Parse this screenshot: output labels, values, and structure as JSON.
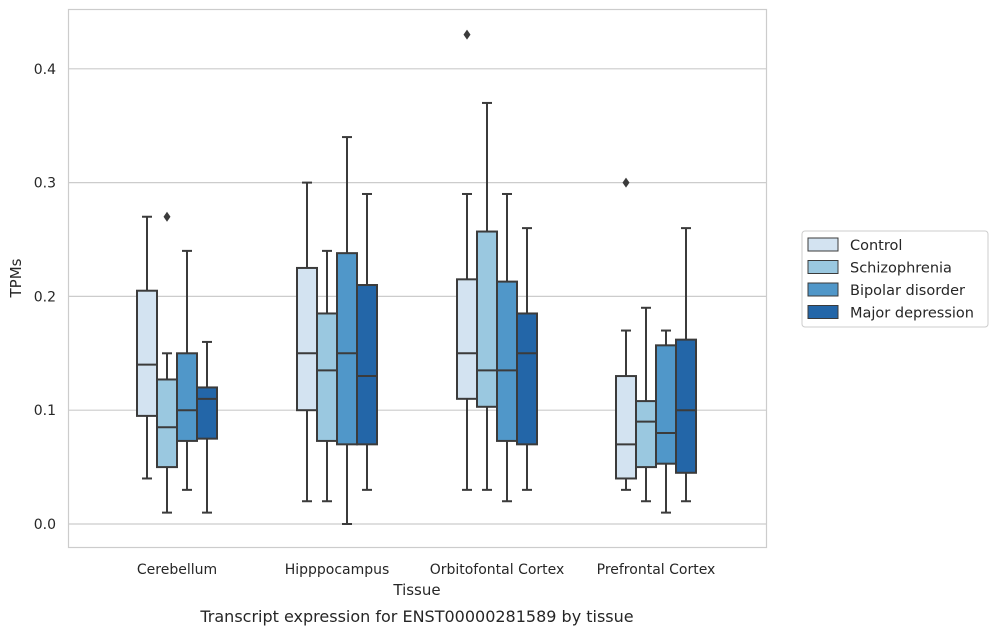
{
  "chart_data": {
    "type": "boxplot",
    "title": "",
    "xlabel": "Tissue",
    "ylabel": "TPMs",
    "caption": "Transcript expression for ENST00000281589 by tissue",
    "ylim": [
      -0.021,
      0.452
    ],
    "yticks": [
      0.0,
      0.1,
      0.2,
      0.3,
      0.4
    ],
    "ytick_labels": [
      "0.0",
      "0.1",
      "0.2",
      "0.3",
      "0.4"
    ],
    "grid": "horizontal",
    "legend_position": "right",
    "categories": [
      "Cerebellum",
      "Hipppocampus",
      "Orbitofontal Cortex",
      "Prefrontal Cortex"
    ],
    "series": [
      {
        "name": "Control",
        "color": "#d3e3f1",
        "boxes": [
          {
            "whislo": 0.04,
            "q1": 0.095,
            "med": 0.14,
            "q3": 0.205,
            "whishi": 0.27,
            "fliers": []
          },
          {
            "whislo": 0.02,
            "q1": 0.1,
            "med": 0.15,
            "q3": 0.225,
            "whishi": 0.3,
            "fliers": []
          },
          {
            "whislo": 0.03,
            "q1": 0.11,
            "med": 0.15,
            "q3": 0.215,
            "whishi": 0.29,
            "fliers": [
              0.43
            ]
          },
          {
            "whislo": 0.03,
            "q1": 0.04,
            "med": 0.07,
            "q3": 0.13,
            "whishi": 0.17,
            "fliers": [
              0.3
            ]
          }
        ]
      },
      {
        "name": "Schizophrenia",
        "color": "#9ac8e0",
        "boxes": [
          {
            "whislo": 0.01,
            "q1": 0.05,
            "med": 0.085,
            "q3": 0.127,
            "whishi": 0.15,
            "fliers": [
              0.27
            ]
          },
          {
            "whislo": 0.02,
            "q1": 0.073,
            "med": 0.135,
            "q3": 0.185,
            "whishi": 0.24,
            "fliers": []
          },
          {
            "whislo": 0.03,
            "q1": 0.103,
            "med": 0.135,
            "q3": 0.257,
            "whishi": 0.37,
            "fliers": []
          },
          {
            "whislo": 0.02,
            "q1": 0.05,
            "med": 0.09,
            "q3": 0.108,
            "whishi": 0.19,
            "fliers": []
          }
        ]
      },
      {
        "name": "Bipolar disorder",
        "color": "#5097c9",
        "boxes": [
          {
            "whislo": 0.03,
            "q1": 0.073,
            "med": 0.1,
            "q3": 0.15,
            "whishi": 0.24,
            "fliers": []
          },
          {
            "whislo": 0.0,
            "q1": 0.07,
            "med": 0.15,
            "q3": 0.238,
            "whishi": 0.34,
            "fliers": []
          },
          {
            "whislo": 0.02,
            "q1": 0.073,
            "med": 0.135,
            "q3": 0.213,
            "whishi": 0.29,
            "fliers": []
          },
          {
            "whislo": 0.01,
            "q1": 0.053,
            "med": 0.08,
            "q3": 0.157,
            "whishi": 0.17,
            "fliers": []
          }
        ]
      },
      {
        "name": "Major depression",
        "color": "#2366a8",
        "boxes": [
          {
            "whislo": 0.01,
            "q1": 0.075,
            "med": 0.11,
            "q3": 0.12,
            "whishi": 0.16,
            "fliers": []
          },
          {
            "whislo": 0.03,
            "q1": 0.07,
            "med": 0.13,
            "q3": 0.21,
            "whishi": 0.29,
            "fliers": []
          },
          {
            "whislo": 0.03,
            "q1": 0.07,
            "med": 0.15,
            "q3": 0.185,
            "whishi": 0.26,
            "fliers": []
          },
          {
            "whislo": 0.02,
            "q1": 0.045,
            "med": 0.1,
            "q3": 0.162,
            "whishi": 0.26,
            "fliers": []
          }
        ]
      }
    ]
  }
}
